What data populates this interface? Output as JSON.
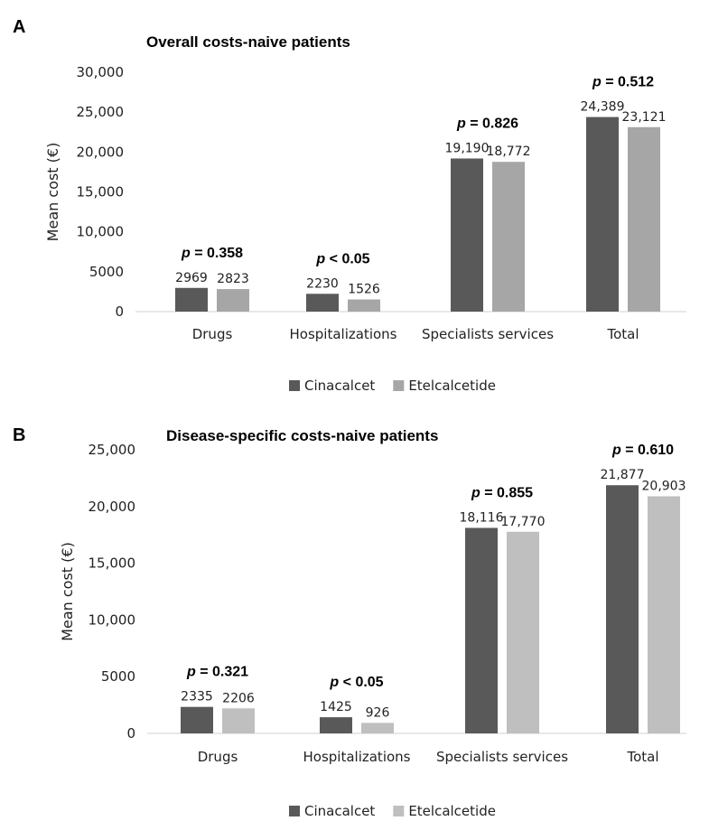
{
  "chart_data": [
    {
      "panel": "A",
      "type": "bar",
      "title": "Overall costs-naive patients",
      "ylabel": "Mean cost (€)",
      "ylim": [
        0,
        30000
      ],
      "yticks": [
        0,
        5000,
        10000,
        15000,
        20000,
        25000,
        30000
      ],
      "ytick_labels": [
        "0",
        "5000",
        "10,000",
        "15,000",
        "20,000",
        "25,000",
        "30,000"
      ],
      "categories": [
        "Drugs",
        "Hospitalizations",
        "Specialists services",
        "Total"
      ],
      "p_values": [
        "p = 0.358",
        "p < 0.05",
        "p = 0.826",
        "p = 0.512"
      ],
      "series": [
        {
          "name": "Cinacalcet",
          "color": "#595959",
          "values": [
            2969,
            2230,
            19190,
            24389
          ],
          "labels": [
            "2969",
            "2230",
            "19,190",
            "24,389"
          ]
        },
        {
          "name": "Etelcalcetide",
          "color": "#a6a6a6",
          "values": [
            2823,
            1526,
            18772,
            23121
          ],
          "labels": [
            "2823",
            "1526",
            "18,772",
            "23,121"
          ]
        }
      ],
      "legend": "bottom",
      "grid": false
    },
    {
      "panel": "B",
      "type": "bar",
      "title": "Disease-specific costs-naive patients",
      "ylabel": "Mean cost (€)",
      "ylim": [
        0,
        25000
      ],
      "yticks": [
        0,
        5000,
        10000,
        15000,
        20000,
        25000
      ],
      "ytick_labels": [
        "0",
        "5000",
        "10,000",
        "15,000",
        "20,000",
        "25,000"
      ],
      "categories": [
        "Drugs",
        "Hospitalizations",
        "Specialists services",
        "Total"
      ],
      "p_values": [
        "p = 0.321",
        "p < 0.05",
        "p = 0.855",
        "p = 0.610"
      ],
      "series": [
        {
          "name": "Cinacalcet",
          "color": "#595959",
          "values": [
            2335,
            1425,
            18116,
            21877
          ],
          "labels": [
            "2335",
            "1425",
            "18,116",
            "21,877"
          ]
        },
        {
          "name": "Etelcalcetide",
          "color": "#bfbfbf",
          "values": [
            2206,
            926,
            17770,
            20903
          ],
          "labels": [
            "2206",
            "926",
            "17,770",
            "20,903"
          ]
        }
      ],
      "legend": "bottom",
      "grid": false
    }
  ]
}
